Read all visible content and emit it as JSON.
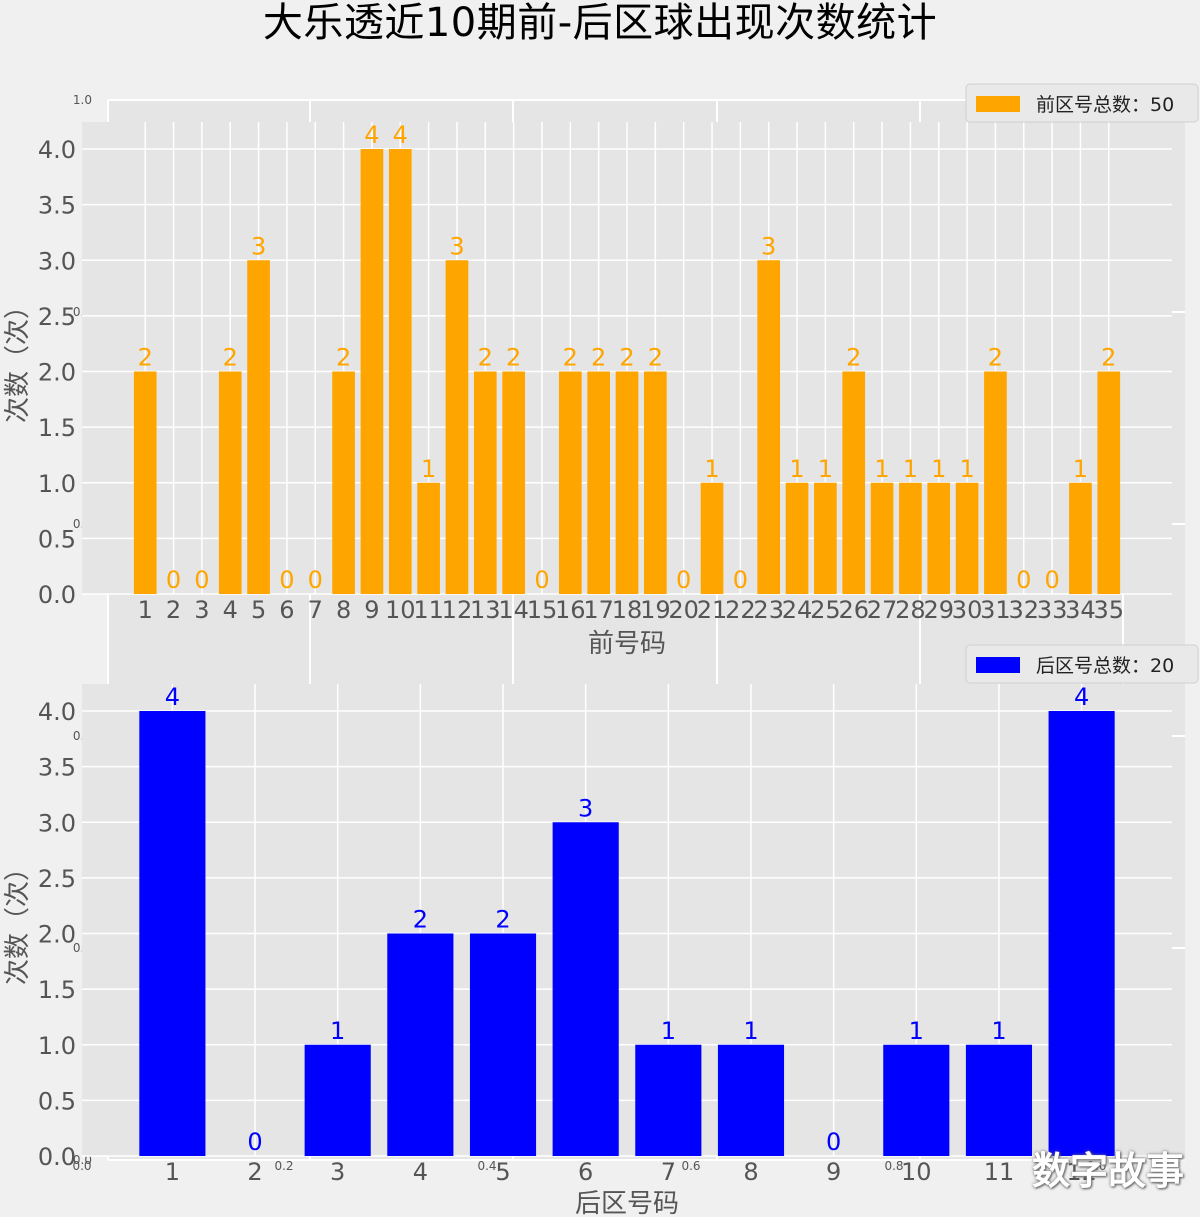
{
  "title": "大乐透近10期前-后区球出现次数统计",
  "watermark": "数字故事",
  "colors": {
    "front": "#ffa500",
    "back": "#0000ff",
    "plot_bg": "#e5e5e5",
    "figure_bg": "#f0f0f0",
    "grid": "#ffffff",
    "tick": "#555555"
  },
  "background_axes": {
    "ticks": [
      "0.0",
      "0.2",
      "0.4",
      "0.6",
      "0.8",
      "1.0"
    ]
  },
  "chart_data": [
    {
      "type": "bar",
      "title": "",
      "xlabel": "前号码",
      "ylabel": "次数（次）",
      "categories": [
        "1",
        "2",
        "3",
        "4",
        "5",
        "6",
        "7",
        "8",
        "9",
        "10",
        "11",
        "12",
        "13",
        "14",
        "15",
        "16",
        "17",
        "18",
        "19",
        "20",
        "21",
        "22",
        "23",
        "24",
        "25",
        "26",
        "27",
        "28",
        "29",
        "30",
        "31",
        "32",
        "33",
        "34",
        "35"
      ],
      "series": [
        {
          "name": "前区号总数：50",
          "values": [
            2,
            0,
            0,
            2,
            3,
            0,
            0,
            2,
            4,
            4,
            1,
            3,
            2,
            2,
            0,
            2,
            2,
            2,
            2,
            0,
            1,
            0,
            3,
            1,
            1,
            2,
            1,
            1,
            1,
            1,
            2,
            0,
            0,
            1,
            2
          ]
        }
      ],
      "ylim": [
        0,
        4.0
      ],
      "yticks": [
        "0.0",
        "0.5",
        "1.0",
        "1.5",
        "2.0",
        "2.5",
        "3.0",
        "3.5",
        "4.0"
      ],
      "grid": true,
      "legend": "top-right"
    },
    {
      "type": "bar",
      "title": "",
      "xlabel": "后区号码",
      "ylabel": "次数（次）",
      "categories": [
        "1",
        "2",
        "3",
        "4",
        "5",
        "6",
        "7",
        "8",
        "9",
        "10",
        "11",
        "12"
      ],
      "series": [
        {
          "name": "后区号总数：20",
          "values": [
            4,
            0,
            1,
            2,
            2,
            3,
            1,
            1,
            0,
            1,
            1,
            4
          ]
        }
      ],
      "ylim": [
        0,
        4.0
      ],
      "yticks": [
        "0.0",
        "0.5",
        "1.0",
        "1.5",
        "2.0",
        "2.5",
        "3.0",
        "3.5",
        "4.0"
      ],
      "grid": true,
      "legend": "top-right"
    }
  ]
}
